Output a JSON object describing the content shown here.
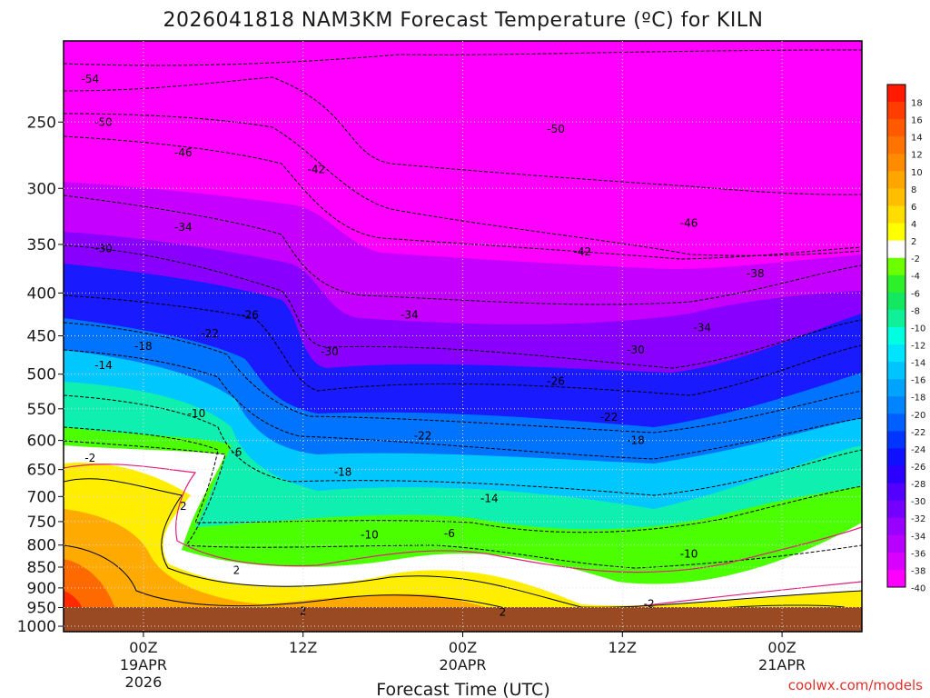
{
  "chart_data": {
    "type": "heatmap",
    "title": "2026041818 NAM3KM Forecast Temperature (ºC) for KILN",
    "xlabel": "Forecast Time (UTC)",
    "ylabel": "",
    "y_axis": {
      "quantity": "pressure (hPa)",
      "ticks": [
        250,
        300,
        350,
        400,
        450,
        500,
        550,
        600,
        650,
        700,
        750,
        800,
        850,
        900,
        950,
        1000
      ],
      "range": [
        1015,
        200
      ],
      "scale": "log"
    },
    "x_axis": {
      "range": [
        "2026-04-18 18Z",
        "2026-04-21 06Z"
      ],
      "ticks": [
        {
          "time": "2026-04-19 00Z",
          "lines": [
            "00Z",
            "19APR",
            "2026"
          ]
        },
        {
          "time": "2026-04-19 12Z",
          "lines": [
            "12Z"
          ]
        },
        {
          "time": "2026-04-20 00Z",
          "lines": [
            "00Z",
            "20APR"
          ]
        },
        {
          "time": "2026-04-20 12Z",
          "lines": [
            "12Z"
          ]
        },
        {
          "time": "2026-04-21 00Z",
          "lines": [
            "00Z",
            "21APR"
          ]
        }
      ]
    },
    "grid": true,
    "colorbar": {
      "placement": "right",
      "units": "ºC",
      "labels": [
        "18",
        "16",
        "14",
        "12",
        "10",
        "8",
        "6",
        "4",
        "2",
        "-2",
        "-4",
        "-6",
        "-8",
        "-10",
        "-12",
        "-14",
        "-16",
        "-18",
        "-20",
        "-22",
        "-24",
        "-26",
        "-28",
        "-30",
        "-32",
        "-34",
        "-36",
        "-38",
        "-40"
      ],
      "colors": [
        "#ff1a00",
        "#ff3d00",
        "#ff5a00",
        "#ff7400",
        "#ff8c00",
        "#ffa500",
        "#ffbf00",
        "#ffdd00",
        "#ffff00",
        "#ffffff",
        "#6bff00",
        "#2ef02a",
        "#13e860",
        "#0ff098",
        "#00ffe0",
        "#00e4ff",
        "#00c4ff",
        "#00a4ff",
        "#0084ff",
        "#0060ff",
        "#0034ff",
        "#1010ff",
        "#2c00ff",
        "#5200ff",
        "#7400ff",
        "#9a00ff",
        "#b800ff",
        "#d800ff",
        "#ff00ff"
      ]
    },
    "contour_labels": [
      {
        "text": "-54",
        "time": "2026-04-18 20Z",
        "p": 222
      },
      {
        "text": "-50",
        "time": "2026-04-18 21Z",
        "p": 250
      },
      {
        "text": "-46",
        "time": "2026-04-19 03Z",
        "p": 272
      },
      {
        "text": "-42",
        "time": "2026-04-19 13Z",
        "p": 285
      },
      {
        "text": "-50",
        "time": "2026-04-20 07Z",
        "p": 255
      },
      {
        "text": "-46",
        "time": "2026-04-20 17Z",
        "p": 330
      },
      {
        "text": "-42",
        "time": "2026-04-20 09Z",
        "p": 357
      },
      {
        "text": "-38",
        "time": "2026-04-20 22Z",
        "p": 379
      },
      {
        "text": "-34",
        "time": "2026-04-19 03Z",
        "p": 334
      },
      {
        "text": "-30",
        "time": "2026-04-18 21Z",
        "p": 354
      },
      {
        "text": "-34",
        "time": "2026-04-19 20Z",
        "p": 425
      },
      {
        "text": "-34",
        "time": "2026-04-20 18Z",
        "p": 440
      },
      {
        "text": "-26",
        "time": "2026-04-19 08Z",
        "p": 425
      },
      {
        "text": "-22",
        "time": "2026-04-19 05Z",
        "p": 447
      },
      {
        "text": "-18",
        "time": "2026-04-19 00Z",
        "p": 463
      },
      {
        "text": "-14",
        "time": "2026-04-18 21Z",
        "p": 488
      },
      {
        "text": "-30",
        "time": "2026-04-19 14Z",
        "p": 470
      },
      {
        "text": "-30",
        "time": "2026-04-20 13Z",
        "p": 468
      },
      {
        "text": "-26",
        "time": "2026-04-20 07Z",
        "p": 510
      },
      {
        "text": "-22",
        "time": "2026-04-20 11Z",
        "p": 563
      },
      {
        "text": "-18",
        "time": "2026-04-20 13Z",
        "p": 600
      },
      {
        "text": "-22",
        "time": "2026-04-19 21Z",
        "p": 592
      },
      {
        "text": "-10",
        "time": "2026-04-19 04Z",
        "p": 557
      },
      {
        "text": "-6",
        "time": "2026-04-19 07Z",
        "p": 620
      },
      {
        "text": "-2",
        "time": "2026-04-18 20Z",
        "p": 630
      },
      {
        "text": "-18",
        "time": "2026-04-19 15Z",
        "p": 655
      },
      {
        "text": "-14",
        "time": "2026-04-20 02Z",
        "p": 704
      },
      {
        "text": "-10",
        "time": "2026-04-19 17Z",
        "p": 778
      },
      {
        "text": "-6",
        "time": "2026-04-19 23Z",
        "p": 775
      },
      {
        "text": "-10",
        "time": "2026-04-20 17Z",
        "p": 820
      },
      {
        "text": "2",
        "time": "2026-04-19 03Z",
        "p": 719
      },
      {
        "text": "2",
        "time": "2026-04-19 07Z",
        "p": 857
      },
      {
        "text": "2",
        "time": "2026-04-19 12Z",
        "p": 960
      },
      {
        "text": "2",
        "time": "2026-04-20 03Z",
        "p": 962
      },
      {
        "text": "-2",
        "time": "2026-04-20 14Z",
        "p": 940
      }
    ]
  },
  "credit": "coolwx.com/models"
}
